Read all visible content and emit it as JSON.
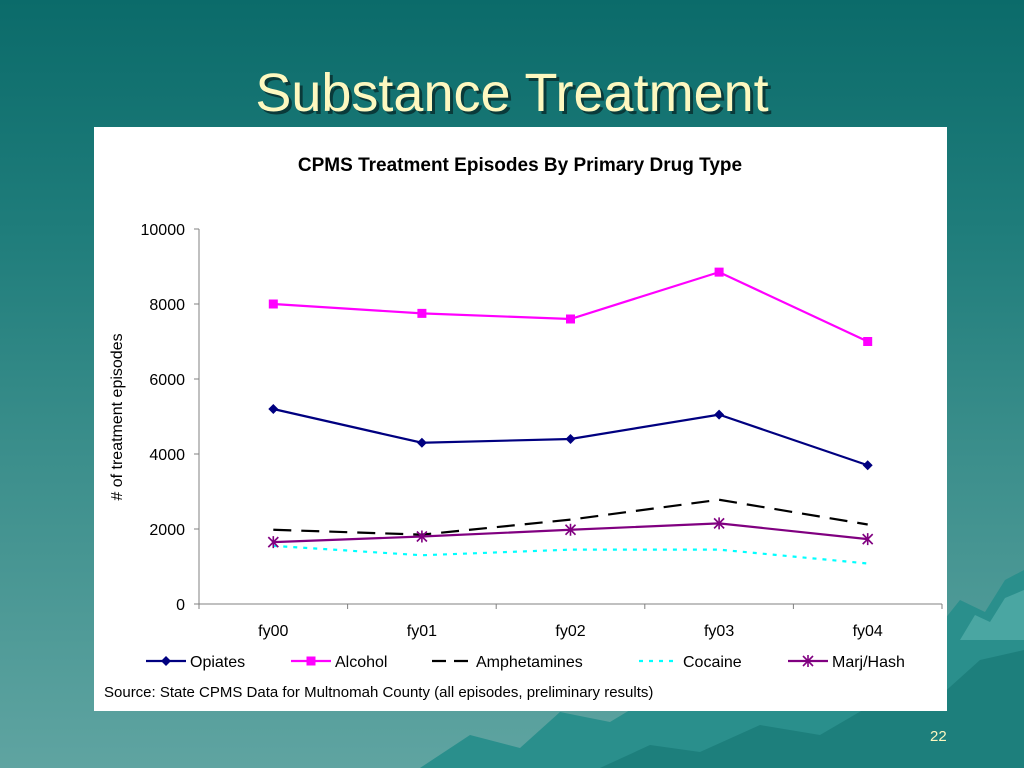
{
  "slide": {
    "title": "Substance Treatment",
    "page_number": "22",
    "source_note": "Source: State CPMS Data for Multnomah County (all episodes, preliminary results)",
    "background_color": "#1f7d7b",
    "title_color": "#fdf8c0"
  },
  "chart_data": {
    "type": "line",
    "title": "CPMS Treatment Episodes By Primary Drug Type",
    "xlabel": "",
    "ylabel": "# of treatment episodes",
    "categories": [
      "fy00",
      "fy01",
      "fy02",
      "fy03",
      "fy04"
    ],
    "ylim": [
      0,
      10000
    ],
    "yticks": [
      0,
      2000,
      4000,
      6000,
      8000,
      10000
    ],
    "grid": false,
    "legend": "bottom",
    "series": [
      {
        "name": "Opiates",
        "values": [
          5200,
          4300,
          4400,
          5050,
          3700
        ],
        "color": "#000080",
        "marker": "diamond",
        "dash": "solid"
      },
      {
        "name": "Alcohol",
        "values": [
          8000,
          7750,
          7600,
          8850,
          7000
        ],
        "color": "#ff00ff",
        "marker": "square",
        "dash": "solid"
      },
      {
        "name": "Amphetamines",
        "values": [
          1980,
          1850,
          2250,
          2780,
          2120
        ],
        "color": "#000000",
        "marker": "none",
        "dash": "long-dash"
      },
      {
        "name": "Cocaine",
        "values": [
          1550,
          1300,
          1450,
          1450,
          1080
        ],
        "color": "#00ffff",
        "marker": "none",
        "dash": "dot"
      },
      {
        "name": "Marj/Hash",
        "values": [
          1650,
          1800,
          1980,
          2150,
          1730
        ],
        "color": "#800080",
        "marker": "star",
        "dash": "solid"
      }
    ]
  }
}
